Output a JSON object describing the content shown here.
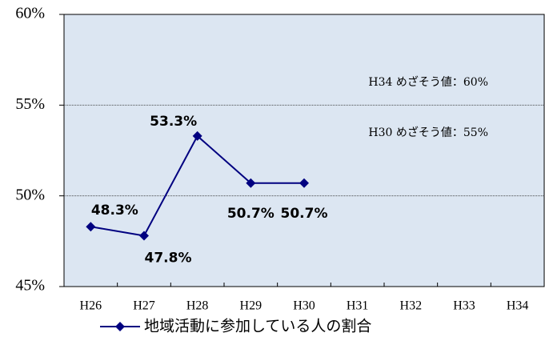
{
  "chart_data": {
    "type": "line",
    "categories": [
      "H26",
      "H27",
      "H28",
      "H29",
      "H30",
      "H31",
      "H32",
      "H33",
      "H34"
    ],
    "series": [
      {
        "name": "地域活動に参加している人の割合",
        "color": "#000080",
        "values": [
          48.3,
          47.8,
          53.3,
          50.7,
          50.7,
          null,
          null,
          null,
          null
        ],
        "value_labels": [
          "48.3%",
          "47.8%",
          "53.3%",
          "50.7%",
          "50.7%",
          null,
          null,
          null,
          null
        ]
      }
    ],
    "ylim": [
      45,
      60
    ],
    "yticks": [
      {
        "value": 45,
        "label": "45%"
      },
      {
        "value": 50,
        "label": "50%"
      },
      {
        "value": 55,
        "label": "55%"
      },
      {
        "value": 60,
        "label": "60%"
      }
    ],
    "grid": true,
    "annotations": [
      "H34 めざそう値：60%",
      "H30 めざそう値：55%"
    ],
    "legend": "bottom"
  }
}
